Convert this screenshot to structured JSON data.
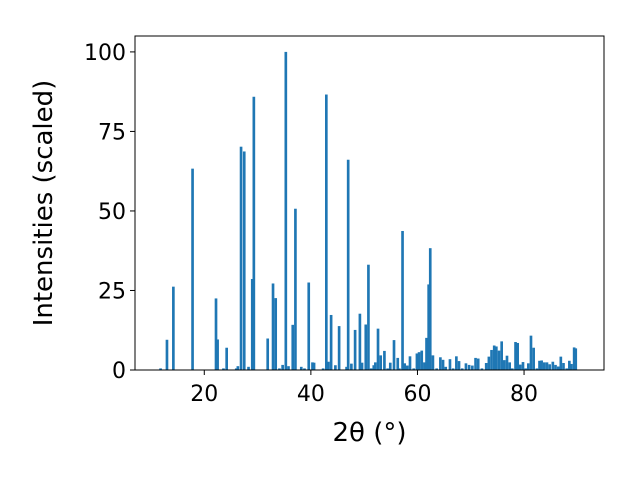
{
  "chart_data": {
    "type": "bar",
    "title": "",
    "xlabel": "2θ (°)",
    "ylabel": "Intensities (scaled)",
    "xlim": [
      7,
      95
    ],
    "ylim": [
      0,
      105
    ],
    "xticks": [
      20,
      40,
      60,
      80
    ],
    "yticks": [
      0,
      25,
      50,
      75,
      100
    ],
    "x_tick_labels": [
      "20",
      "40",
      "60",
      "80"
    ],
    "y_tick_labels": [
      "0",
      "25",
      "50",
      "75",
      "100"
    ],
    "grid": false,
    "legend": "none",
    "bar_color": "#1f77b4",
    "bar_width": 0.5,
    "x": [
      11.8,
      13.0,
      14.2,
      17.8,
      22.2,
      22.5,
      23.6,
      24.2,
      26.0,
      26.3,
      26.9,
      27.5,
      28.3,
      29.0,
      29.3,
      31.9,
      32.9,
      33.4,
      34.1,
      34.7,
      35.3,
      35.8,
      36.6,
      37.1,
      38.2,
      38.8,
      39.6,
      40.3,
      40.6,
      42.3,
      42.9,
      43.3,
      43.8,
      44.6,
      45.3,
      46.7,
      47.0,
      47.6,
      48.3,
      49.2,
      49.6,
      50.3,
      50.8,
      51.3,
      51.8,
      52.1,
      52.6,
      53.1,
      53.8,
      54.4,
      54.9,
      55.6,
      56.3,
      56.6,
      57.2,
      57.6,
      58.1,
      58.6,
      59.3,
      59.9,
      60.3,
      60.8,
      61.3,
      61.7,
      62.1,
      62.4,
      62.9,
      63.6,
      64.3,
      64.8,
      65.3,
      66.1,
      66.7,
      67.3,
      67.8,
      68.4,
      69.1,
      69.7,
      70.3,
      70.9,
      71.4,
      72.1,
      72.9,
      73.4,
      73.9,
      74.4,
      74.8,
      75.3,
      75.8,
      76.3,
      76.8,
      77.3,
      77.8,
      78.4,
      78.8,
      79.3,
      79.8,
      80.3,
      80.8,
      81.3,
      81.8,
      82.4,
      82.9,
      83.3,
      83.8,
      84.3,
      84.8,
      85.4,
      85.9,
      86.4,
      86.9,
      87.4,
      88.0,
      88.5,
      88.9,
      89.4,
      89.7
    ],
    "values": [
      0.5,
      9.5,
      26.2,
      63.3,
      22.5,
      9.6,
      0.5,
      7.0,
      0.5,
      1.2,
      70.2,
      68.7,
      1.0,
      28.6,
      85.9,
      9.9,
      27.2,
      22.6,
      0.5,
      1.6,
      100.0,
      1.2,
      14.2,
      50.7,
      1.0,
      0.5,
      27.5,
      2.4,
      2.3,
      0.5,
      86.6,
      2.6,
      17.3,
      1.5,
      13.8,
      1.0,
      66.1,
      2.0,
      12.6,
      17.7,
      2.3,
      14.3,
      33.1,
      0.5,
      1.5,
      2.4,
      13.0,
      4.6,
      6.0,
      0.5,
      2.3,
      9.4,
      3.8,
      0.5,
      43.7,
      2.1,
      1.4,
      4.3,
      0.5,
      5.2,
      5.6,
      6.1,
      2.4,
      10.1,
      26.9,
      38.3,
      4.6,
      0.5,
      4.0,
      3.2,
      1.0,
      3.4,
      0.5,
      4.3,
      2.8,
      0.5,
      2.1,
      1.6,
      1.4,
      3.8,
      3.6,
      0.5,
      2.2,
      4.2,
      6.3,
      7.7,
      7.4,
      6.1,
      9.0,
      3.1,
      4.5,
      2.4,
      0.5,
      8.8,
      8.5,
      1.7,
      2.5,
      0.5,
      2.1,
      10.8,
      7.0,
      0.5,
      2.9,
      3.0,
      2.4,
      2.4,
      1.8,
      2.6,
      1.6,
      1.1,
      4.2,
      2.2,
      0.5,
      2.9,
      1.9,
      7.1,
      6.8
    ]
  }
}
